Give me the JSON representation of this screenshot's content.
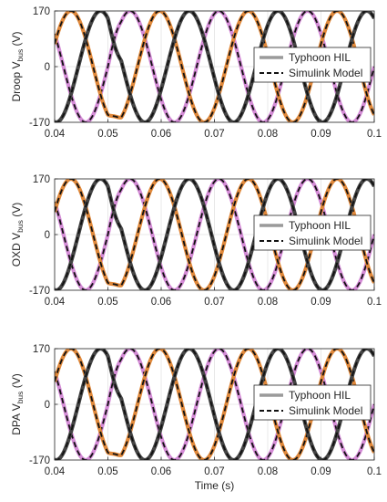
{
  "chart_data": [
    {
      "type": "line",
      "ylabel_prefix": "Droop V",
      "ylabel_sub": "bus",
      "ylabel_suffix": " (V)",
      "xlabel": "",
      "xlim": [
        0.04,
        0.1
      ],
      "ylim": [
        -170,
        170
      ],
      "xticks": [
        "0.04",
        "0.05",
        "0.06",
        "0.07",
        "0.08",
        "0.09",
        "0.1"
      ],
      "yticks": [
        "170",
        "0",
        "-170"
      ],
      "grid": true,
      "legend_position": "right-middle",
      "legend": [
        "Typhoon HIL",
        "Simulink Model"
      ],
      "frequency_hz": 60,
      "amplitude_v": 170,
      "disturbance_time_s": 0.05,
      "series": [
        {
          "phase_offset_deg": 0,
          "color": "#d48bd6"
        },
        {
          "phase_offset_deg": 120,
          "color": "#e0883a"
        },
        {
          "phase_offset_deg": 240,
          "color": "#444444"
        }
      ]
    },
    {
      "type": "line",
      "ylabel_prefix": "OXD V",
      "ylabel_sub": "bus",
      "ylabel_suffix": " (V)",
      "xlabel": "",
      "xlim": [
        0.04,
        0.1
      ],
      "ylim": [
        -170,
        170
      ],
      "xticks": [
        "0.04",
        "0.05",
        "0.06",
        "0.07",
        "0.08",
        "0.09",
        "0.1"
      ],
      "yticks": [
        "170",
        "0",
        "-170"
      ],
      "grid": true,
      "legend_position": "right-middle",
      "legend": [
        "Typhoon HIL",
        "Simulink Model"
      ],
      "frequency_hz": 60,
      "amplitude_v": 170,
      "disturbance_time_s": 0.05,
      "series": [
        {
          "phase_offset_deg": 0,
          "color": "#d48bd6"
        },
        {
          "phase_offset_deg": 120,
          "color": "#e0883a"
        },
        {
          "phase_offset_deg": 240,
          "color": "#444444"
        }
      ]
    },
    {
      "type": "line",
      "ylabel_prefix": "DPA V",
      "ylabel_sub": "bus",
      "ylabel_suffix": " (V)",
      "xlabel": "Time (s)",
      "xlim": [
        0.04,
        0.1
      ],
      "ylim": [
        -170,
        170
      ],
      "xticks": [
        "0.04",
        "0.05",
        "0.06",
        "0.07",
        "0.08",
        "0.09",
        "0.1"
      ],
      "yticks": [
        "170",
        "0",
        "-170"
      ],
      "grid": true,
      "legend_position": "right-middle",
      "legend": [
        "Typhoon HIL",
        "Simulink Model"
      ],
      "frequency_hz": 60,
      "amplitude_v": 170,
      "disturbance_time_s": 0.05,
      "series": [
        {
          "phase_offset_deg": 0,
          "color": "#d48bd6"
        },
        {
          "phase_offset_deg": 120,
          "color": "#e0883a"
        },
        {
          "phase_offset_deg": 240,
          "color": "#444444"
        }
      ]
    }
  ],
  "colors": {
    "hil_line": "#9a9a9a",
    "sim_line": "#111111",
    "grid": "#e3e3e3",
    "axis": "#262626"
  }
}
